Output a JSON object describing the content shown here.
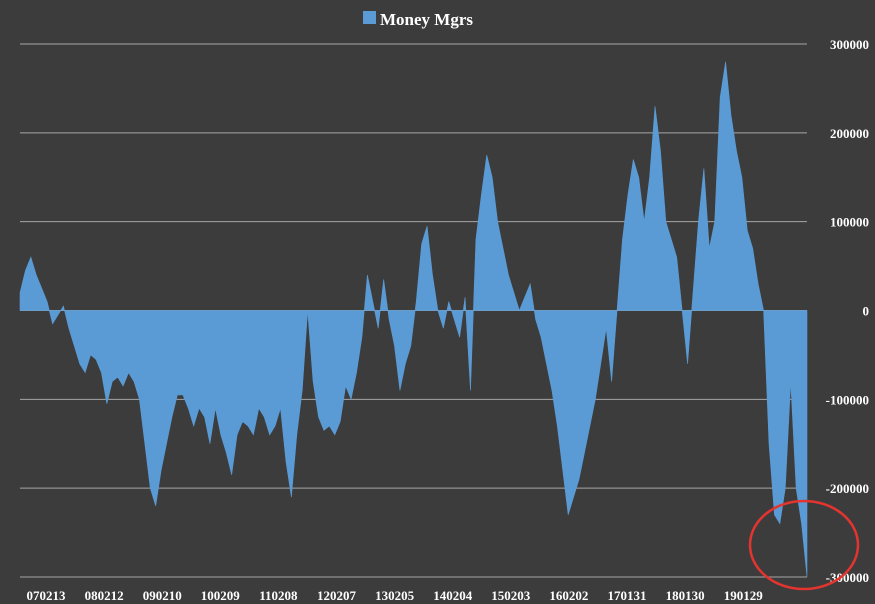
{
  "chart_data": {
    "type": "area",
    "legend": {
      "label": "Money Mgrs",
      "position": "top",
      "color": "#5b9bd5"
    },
    "series": [
      {
        "name": "Money Mgrs",
        "color": "#5b9bd5",
        "points": [
          [
            0,
            20000
          ],
          [
            1,
            45000
          ],
          [
            2,
            60000
          ],
          [
            3,
            40000
          ],
          [
            4,
            25000
          ],
          [
            5,
            10000
          ],
          [
            6,
            -15000
          ],
          [
            7,
            -5000
          ],
          [
            8,
            5000
          ],
          [
            9,
            -20000
          ],
          [
            10,
            -40000
          ],
          [
            11,
            -60000
          ],
          [
            12,
            -70000
          ],
          [
            13,
            -50000
          ],
          [
            14,
            -55000
          ],
          [
            15,
            -70000
          ],
          [
            16,
            -105000
          ],
          [
            17,
            -80000
          ],
          [
            18,
            -75000
          ],
          [
            19,
            -85000
          ],
          [
            20,
            -70000
          ],
          [
            21,
            -80000
          ],
          [
            22,
            -100000
          ],
          [
            23,
            -150000
          ],
          [
            24,
            -200000
          ],
          [
            25,
            -220000
          ],
          [
            26,
            -180000
          ],
          [
            27,
            -150000
          ],
          [
            28,
            -120000
          ],
          [
            29,
            -95000
          ],
          [
            30,
            -95000
          ],
          [
            31,
            -110000
          ],
          [
            32,
            -130000
          ],
          [
            33,
            -110000
          ],
          [
            34,
            -120000
          ],
          [
            35,
            -150000
          ],
          [
            36,
            -110000
          ],
          [
            37,
            -140000
          ],
          [
            38,
            -160000
          ],
          [
            39,
            -185000
          ],
          [
            40,
            -140000
          ],
          [
            41,
            -125000
          ],
          [
            42,
            -130000
          ],
          [
            43,
            -140000
          ],
          [
            44,
            -110000
          ],
          [
            45,
            -120000
          ],
          [
            46,
            -140000
          ],
          [
            47,
            -130000
          ],
          [
            48,
            -110000
          ],
          [
            49,
            -170000
          ],
          [
            50,
            -210000
          ],
          [
            51,
            -140000
          ],
          [
            52,
            -90000
          ],
          [
            53,
            0
          ],
          [
            54,
            -80000
          ],
          [
            55,
            -120000
          ],
          [
            56,
            -135000
          ],
          [
            57,
            -130000
          ],
          [
            58,
            -140000
          ],
          [
            59,
            -125000
          ],
          [
            60,
            -85000
          ],
          [
            61,
            -100000
          ],
          [
            62,
            -70000
          ],
          [
            63,
            -30000
          ],
          [
            64,
            40000
          ],
          [
            65,
            10000
          ],
          [
            66,
            -20000
          ],
          [
            67,
            35000
          ],
          [
            68,
            -10000
          ],
          [
            69,
            -40000
          ],
          [
            70,
            -90000
          ],
          [
            71,
            -60000
          ],
          [
            72,
            -40000
          ],
          [
            73,
            10000
          ],
          [
            74,
            75000
          ],
          [
            75,
            95000
          ],
          [
            76,
            40000
          ],
          [
            77,
            0
          ],
          [
            78,
            -20000
          ],
          [
            79,
            10000
          ],
          [
            80,
            -10000
          ],
          [
            81,
            -30000
          ],
          [
            82,
            15000
          ],
          [
            83,
            -90000
          ],
          [
            84,
            80000
          ],
          [
            85,
            130000
          ],
          [
            86,
            175000
          ],
          [
            87,
            150000
          ],
          [
            88,
            100000
          ],
          [
            89,
            70000
          ],
          [
            90,
            40000
          ],
          [
            91,
            20000
          ],
          [
            92,
            0
          ],
          [
            93,
            15000
          ],
          [
            94,
            30000
          ],
          [
            95,
            -10000
          ],
          [
            96,
            -30000
          ],
          [
            97,
            -60000
          ],
          [
            98,
            -90000
          ],
          [
            99,
            -130000
          ],
          [
            100,
            -180000
          ],
          [
            101,
            -230000
          ],
          [
            102,
            -210000
          ],
          [
            103,
            -190000
          ],
          [
            104,
            -160000
          ],
          [
            105,
            -130000
          ],
          [
            106,
            -100000
          ],
          [
            107,
            -60000
          ],
          [
            108,
            -20000
          ],
          [
            109,
            -80000
          ],
          [
            110,
            0
          ],
          [
            111,
            80000
          ],
          [
            112,
            130000
          ],
          [
            113,
            170000
          ],
          [
            114,
            150000
          ],
          [
            115,
            100000
          ],
          [
            116,
            150000
          ],
          [
            117,
            230000
          ],
          [
            118,
            180000
          ],
          [
            119,
            100000
          ],
          [
            120,
            80000
          ],
          [
            121,
            60000
          ],
          [
            122,
            0
          ],
          [
            123,
            -60000
          ],
          [
            124,
            20000
          ],
          [
            125,
            100000
          ],
          [
            126,
            160000
          ],
          [
            127,
            70000
          ],
          [
            128,
            100000
          ],
          [
            129,
            240000
          ],
          [
            130,
            280000
          ],
          [
            131,
            220000
          ],
          [
            132,
            180000
          ],
          [
            133,
            150000
          ],
          [
            134,
            90000
          ],
          [
            135,
            70000
          ],
          [
            136,
            30000
          ],
          [
            137,
            0
          ],
          [
            138,
            -150000
          ],
          [
            139,
            -230000
          ],
          [
            140,
            -240000
          ],
          [
            141,
            -200000
          ],
          [
            142,
            -80000
          ],
          [
            143,
            -200000
          ],
          [
            144,
            -240000
          ],
          [
            145,
            -300000
          ]
        ]
      }
    ],
    "x_range": [
      0,
      145
    ],
    "x_ticks": [
      "070213",
      "080212",
      "090210",
      "100209",
      "110208",
      "120207",
      "130205",
      "140204",
      "150203",
      "160202",
      "170131",
      "180130",
      "190129"
    ],
    "y_axis": {
      "position": "right",
      "min": -300000,
      "max": 300000,
      "step": 100000
    },
    "y_ticks": [
      "300000",
      "200000",
      "100000",
      "0",
      "-100000",
      "-200000",
      "-300000"
    ],
    "grid": {
      "horizontal": true,
      "vertical": false,
      "color": "#a6a6a6"
    },
    "annotations": [
      {
        "type": "circle",
        "color": "#e3342f",
        "target_x": 145,
        "target_y": -300000
      }
    ]
  }
}
